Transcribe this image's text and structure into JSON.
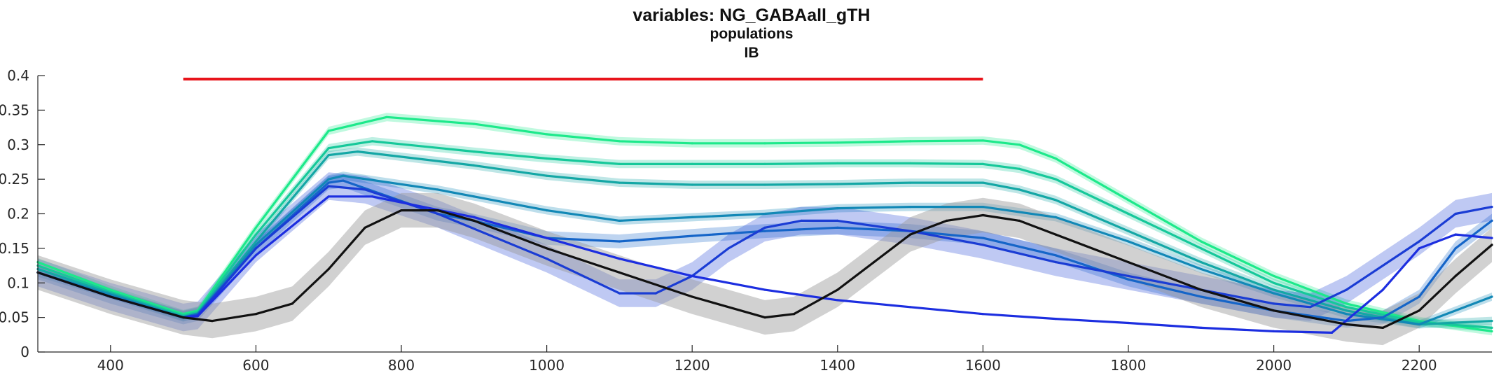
{
  "chart_data": {
    "type": "line",
    "title": "variables: NG_GABAall_gTH",
    "subtitle": "populations",
    "subtitle2": "IB",
    "xlabel": "",
    "ylabel": "",
    "xlim": [
      300,
      2300
    ],
    "ylim": [
      0,
      0.4
    ],
    "xticks": [
      400,
      600,
      800,
      1000,
      1200,
      1400,
      1600,
      1800,
      2000,
      2200
    ],
    "yticks": [
      0,
      0.05,
      0.1,
      0.15,
      0.2,
      0.25,
      0.3,
      0.35,
      0.4
    ],
    "ytick_labels": [
      "0",
      "0.05",
      "0.1",
      "0.15",
      "0.2",
      "0.25",
      "0.3",
      "0.35",
      "0.4"
    ],
    "grid": false,
    "legend": "none",
    "stimulus_bar": {
      "x": [
        500,
        1600
      ],
      "y": 0.395,
      "color": "#e8141b"
    },
    "series": [
      {
        "color": "#1de98b",
        "band": 0.006,
        "x": [
          300,
          400,
          500,
          520,
          600,
          700,
          780,
          900,
          1000,
          1100,
          1200,
          1300,
          1400,
          1500,
          1600,
          1650,
          1700,
          1800,
          1900,
          2000,
          2100,
          2200,
          2300
        ],
        "y": [
          0.13,
          0.09,
          0.055,
          0.06,
          0.18,
          0.32,
          0.34,
          0.33,
          0.315,
          0.305,
          0.302,
          0.302,
          0.303,
          0.305,
          0.306,
          0.3,
          0.28,
          0.22,
          0.16,
          0.11,
          0.07,
          0.045,
          0.03
        ]
      },
      {
        "color": "#16c89a",
        "band": 0.006,
        "x": [
          300,
          400,
          500,
          520,
          600,
          700,
          760,
          900,
          1000,
          1100,
          1200,
          1300,
          1400,
          1500,
          1600,
          1650,
          1700,
          1800,
          1900,
          2000,
          2100,
          2200,
          2300
        ],
        "y": [
          0.125,
          0.087,
          0.053,
          0.058,
          0.17,
          0.295,
          0.305,
          0.29,
          0.28,
          0.272,
          0.272,
          0.272,
          0.273,
          0.273,
          0.272,
          0.265,
          0.25,
          0.2,
          0.15,
          0.1,
          0.065,
          0.043,
          0.035
        ]
      },
      {
        "color": "#14a7a5",
        "band": 0.006,
        "x": [
          300,
          400,
          500,
          520,
          600,
          700,
          740,
          900,
          1000,
          1100,
          1200,
          1300,
          1400,
          1500,
          1600,
          1650,
          1700,
          1800,
          1900,
          2000,
          2100,
          2200,
          2300
        ],
        "y": [
          0.12,
          0.085,
          0.051,
          0.056,
          0.16,
          0.285,
          0.29,
          0.27,
          0.255,
          0.245,
          0.242,
          0.242,
          0.243,
          0.245,
          0.245,
          0.235,
          0.22,
          0.175,
          0.13,
          0.09,
          0.06,
          0.04,
          0.045
        ]
      },
      {
        "color": "#1288b6",
        "band": 0.006,
        "x": [
          300,
          400,
          500,
          520,
          600,
          700,
          720,
          850,
          900,
          1000,
          1100,
          1200,
          1300,
          1400,
          1500,
          1600,
          1700,
          1800,
          1900,
          2000,
          2100,
          2200,
          2300
        ],
        "y": [
          0.115,
          0.083,
          0.05,
          0.055,
          0.155,
          0.25,
          0.255,
          0.235,
          0.225,
          0.205,
          0.19,
          0.195,
          0.2,
          0.208,
          0.21,
          0.21,
          0.195,
          0.16,
          0.12,
          0.085,
          0.055,
          0.04,
          0.08
        ]
      },
      {
        "color": "#1565c8",
        "band": 0.01,
        "x": [
          300,
          400,
          500,
          520,
          600,
          700,
          720,
          850,
          900,
          1000,
          1100,
          1200,
          1300,
          1400,
          1500,
          1600,
          1700,
          1800,
          1900,
          2000,
          2100,
          2150,
          2200,
          2250,
          2300
        ],
        "y": [
          0.115,
          0.08,
          0.05,
          0.055,
          0.15,
          0.245,
          0.248,
          0.2,
          0.19,
          0.165,
          0.16,
          0.168,
          0.175,
          0.18,
          0.175,
          0.165,
          0.14,
          0.105,
          0.08,
          0.06,
          0.045,
          0.05,
          0.08,
          0.15,
          0.19
        ]
      },
      {
        "color": "#1a3cd4",
        "band": 0.02,
        "x": [
          300,
          400,
          500,
          520,
          600,
          700,
          750,
          850,
          1000,
          1100,
          1150,
          1200,
          1250,
          1300,
          1350,
          1400,
          1500,
          1600,
          1700,
          1800,
          1900,
          2000,
          2050,
          2100,
          2200,
          2250,
          2300
        ],
        "y": [
          0.115,
          0.08,
          0.05,
          0.053,
          0.15,
          0.24,
          0.235,
          0.2,
          0.135,
          0.085,
          0.085,
          0.11,
          0.15,
          0.18,
          0.19,
          0.19,
          0.175,
          0.155,
          0.13,
          0.11,
          0.09,
          0.07,
          0.065,
          0.09,
          0.16,
          0.2,
          0.21
        ]
      },
      {
        "color": "#1c2ee0",
        "band": 0.0,
        "x": [
          300,
          400,
          500,
          520,
          600,
          700,
          760,
          900,
          1000,
          1100,
          1200,
          1300,
          1400,
          1500,
          1600,
          1700,
          1800,
          1900,
          2000,
          2080,
          2150,
          2200,
          2250,
          2300
        ],
        "y": [
          0.115,
          0.08,
          0.05,
          0.052,
          0.14,
          0.225,
          0.225,
          0.195,
          0.165,
          0.135,
          0.11,
          0.09,
          0.075,
          0.065,
          0.055,
          0.048,
          0.042,
          0.035,
          0.03,
          0.028,
          0.09,
          0.15,
          0.17,
          0.165
        ]
      },
      {
        "color": "#111111",
        "band": 0.025,
        "x": [
          300,
          400,
          500,
          540,
          600,
          650,
          700,
          750,
          800,
          850,
          900,
          1000,
          1100,
          1200,
          1300,
          1340,
          1400,
          1450,
          1500,
          1550,
          1600,
          1650,
          1700,
          1800,
          1900,
          2000,
          2100,
          2150,
          2200,
          2250,
          2300
        ],
        "y": [
          0.115,
          0.08,
          0.05,
          0.045,
          0.055,
          0.07,
          0.12,
          0.18,
          0.205,
          0.205,
          0.19,
          0.15,
          0.115,
          0.08,
          0.05,
          0.055,
          0.09,
          0.13,
          0.17,
          0.19,
          0.198,
          0.19,
          0.17,
          0.13,
          0.09,
          0.06,
          0.04,
          0.035,
          0.06,
          0.11,
          0.155
        ]
      }
    ]
  }
}
